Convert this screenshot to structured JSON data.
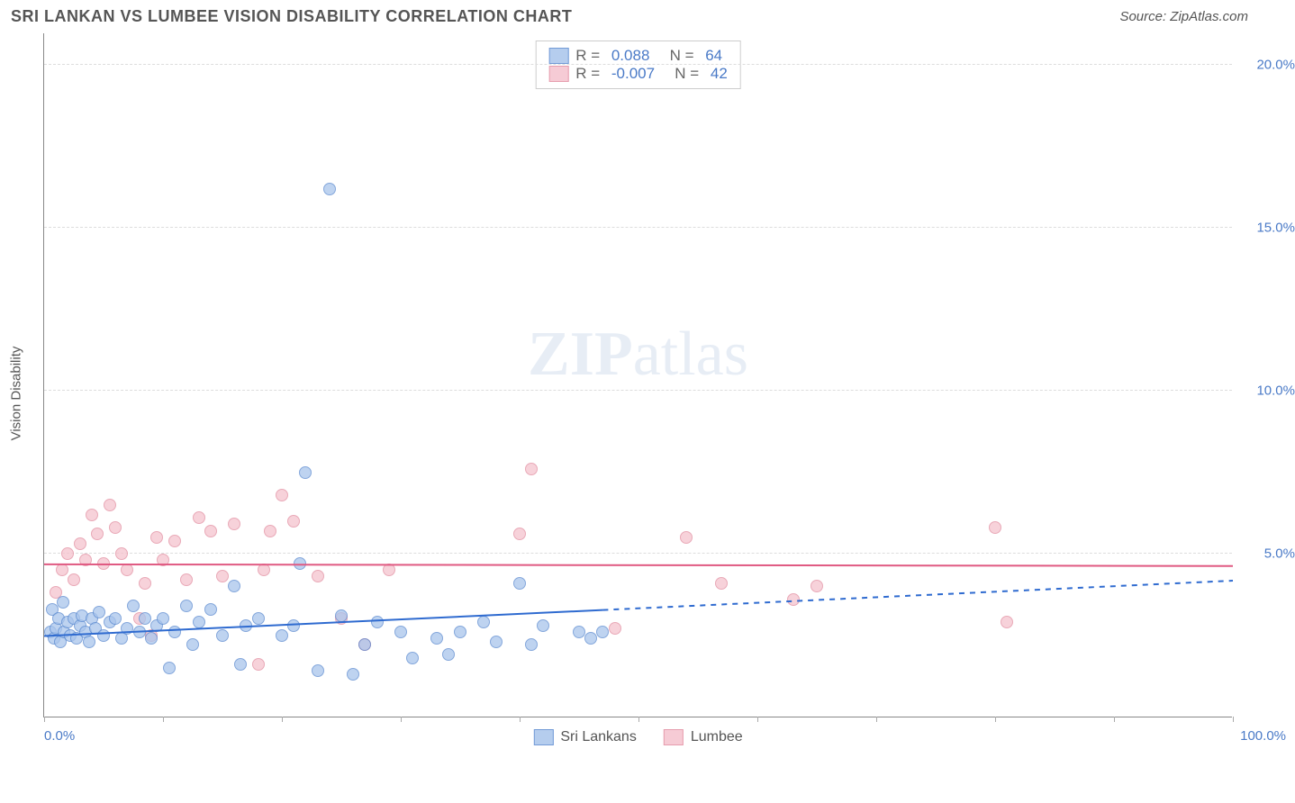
{
  "header": {
    "title": "SRI LANKAN VS LUMBEE VISION DISABILITY CORRELATION CHART",
    "source": "Source: ZipAtlas.com"
  },
  "ylabel": "Vision Disability",
  "watermark": {
    "bold": "ZIP",
    "rest": "atlas"
  },
  "axes": {
    "xlim": [
      0,
      100
    ],
    "ylim": [
      0,
      21
    ],
    "x_left_label": "0.0%",
    "x_right_label": "100.0%",
    "y_ticks": [
      {
        "v": 5,
        "label": "5.0%"
      },
      {
        "v": 10,
        "label": "10.0%"
      },
      {
        "v": 15,
        "label": "15.0%"
      },
      {
        "v": 20,
        "label": "20.0%"
      }
    ],
    "x_tick_positions": [
      0,
      10,
      20,
      30,
      40,
      50,
      60,
      70,
      80,
      90,
      100
    ],
    "tick_color": "#4a7ac7",
    "grid_color": "#dddddd"
  },
  "series": {
    "blue": {
      "label": "Sri Lankans",
      "fill": "#a9c5ec",
      "stroke": "#5b8ad0",
      "opacity": 0.75,
      "R": "0.088",
      "N": "64",
      "trend": {
        "y_at_x0": 2.5,
        "y_at_x100": 4.2,
        "solid_until_x": 47,
        "color": "#2f6bd0",
        "width": 2
      },
      "points": [
        [
          0.5,
          2.6
        ],
        [
          0.7,
          3.3
        ],
        [
          0.8,
          2.4
        ],
        [
          1.0,
          2.7
        ],
        [
          1.2,
          3.0
        ],
        [
          1.4,
          2.3
        ],
        [
          1.6,
          3.5
        ],
        [
          1.7,
          2.6
        ],
        [
          2.0,
          2.9
        ],
        [
          2.2,
          2.5
        ],
        [
          2.5,
          3.0
        ],
        [
          2.7,
          2.4
        ],
        [
          3.0,
          2.8
        ],
        [
          3.2,
          3.1
        ],
        [
          3.5,
          2.6
        ],
        [
          3.8,
          2.3
        ],
        [
          4.0,
          3.0
        ],
        [
          4.3,
          2.7
        ],
        [
          4.6,
          3.2
        ],
        [
          5.0,
          2.5
        ],
        [
          5.5,
          2.9
        ],
        [
          6.0,
          3.0
        ],
        [
          6.5,
          2.4
        ],
        [
          7.0,
          2.7
        ],
        [
          7.5,
          3.4
        ],
        [
          8.0,
          2.6
        ],
        [
          8.5,
          3.0
        ],
        [
          9.0,
          2.4
        ],
        [
          9.5,
          2.8
        ],
        [
          10.0,
          3.0
        ],
        [
          10.5,
          1.5
        ],
        [
          11.0,
          2.6
        ],
        [
          12.0,
          3.4
        ],
        [
          12.5,
          2.2
        ],
        [
          13.0,
          2.9
        ],
        [
          14.0,
          3.3
        ],
        [
          15.0,
          2.5
        ],
        [
          16.0,
          4.0
        ],
        [
          16.5,
          1.6
        ],
        [
          17.0,
          2.8
        ],
        [
          18.0,
          3.0
        ],
        [
          20.0,
          2.5
        ],
        [
          21.0,
          2.8
        ],
        [
          21.5,
          4.7
        ],
        [
          22.0,
          7.5
        ],
        [
          23.0,
          1.4
        ],
        [
          24.0,
          16.2
        ],
        [
          25.0,
          3.1
        ],
        [
          26.0,
          1.3
        ],
        [
          27.0,
          2.2
        ],
        [
          28.0,
          2.9
        ],
        [
          30.0,
          2.6
        ],
        [
          31.0,
          1.8
        ],
        [
          33.0,
          2.4
        ],
        [
          34.0,
          1.9
        ],
        [
          35.0,
          2.6
        ],
        [
          37.0,
          2.9
        ],
        [
          38.0,
          2.3
        ],
        [
          40.0,
          4.1
        ],
        [
          41.0,
          2.2
        ],
        [
          42.0,
          2.8
        ],
        [
          45.0,
          2.6
        ],
        [
          46.0,
          2.4
        ],
        [
          47.0,
          2.6
        ]
      ]
    },
    "pink": {
      "label": "Lumbee",
      "fill": "#f5c3ce",
      "stroke": "#e28da0",
      "opacity": 0.75,
      "R": "-0.007",
      "N": "42",
      "trend": {
        "y_at_x0": 4.7,
        "y_at_x100": 4.65,
        "solid_until_x": 100,
        "color": "#e05a82",
        "width": 2
      },
      "points": [
        [
          1.0,
          3.8
        ],
        [
          1.5,
          4.5
        ],
        [
          2.0,
          5.0
        ],
        [
          2.5,
          4.2
        ],
        [
          3.0,
          5.3
        ],
        [
          3.5,
          4.8
        ],
        [
          4.0,
          6.2
        ],
        [
          4.5,
          5.6
        ],
        [
          5.0,
          4.7
        ],
        [
          5.5,
          6.5
        ],
        [
          6.0,
          5.8
        ],
        [
          6.5,
          5.0
        ],
        [
          7.0,
          4.5
        ],
        [
          8.0,
          3.0
        ],
        [
          8.5,
          4.1
        ],
        [
          9.0,
          2.5
        ],
        [
          9.5,
          5.5
        ],
        [
          10.0,
          4.8
        ],
        [
          11.0,
          5.4
        ],
        [
          12.0,
          4.2
        ],
        [
          13.0,
          6.1
        ],
        [
          14.0,
          5.7
        ],
        [
          15.0,
          4.3
        ],
        [
          16.0,
          5.9
        ],
        [
          18.0,
          1.6
        ],
        [
          18.5,
          4.5
        ],
        [
          19.0,
          5.7
        ],
        [
          20.0,
          6.8
        ],
        [
          21.0,
          6.0
        ],
        [
          23.0,
          4.3
        ],
        [
          25.0,
          3.0
        ],
        [
          27.0,
          2.2
        ],
        [
          29.0,
          4.5
        ],
        [
          40.0,
          5.6
        ],
        [
          41.0,
          7.6
        ],
        [
          48.0,
          2.7
        ],
        [
          54.0,
          5.5
        ],
        [
          57.0,
          4.1
        ],
        [
          63.0,
          3.6
        ],
        [
          65.0,
          4.0
        ],
        [
          80.0,
          5.8
        ],
        [
          81.0,
          2.9
        ]
      ]
    }
  }
}
